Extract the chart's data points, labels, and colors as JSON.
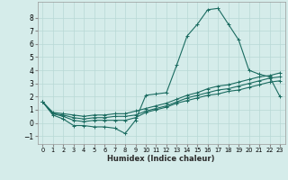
{
  "title": "",
  "xlabel": "Humidex (Indice chaleur)",
  "ylabel": "",
  "background_color": "#d5ecea",
  "line_color": "#1a6b60",
  "grid_color": "#b8d8d5",
  "x_ticks": [
    0,
    1,
    2,
    3,
    4,
    5,
    6,
    7,
    8,
    9,
    10,
    11,
    12,
    13,
    14,
    15,
    16,
    17,
    18,
    19,
    20,
    21,
    22,
    23
  ],
  "y_ticks": [
    -1,
    0,
    1,
    2,
    3,
    4,
    5,
    6,
    7,
    8
  ],
  "xlim": [
    -0.5,
    23.5
  ],
  "ylim": [
    -1.6,
    9.2
  ],
  "series": [
    {
      "x": [
        0,
        1,
        2,
        3,
        4,
        5,
        6,
        7,
        8,
        9,
        10,
        11,
        12,
        13,
        14,
        15,
        16,
        17,
        18,
        19,
        20,
        21,
        22,
        23
      ],
      "y": [
        1.6,
        0.6,
        0.3,
        -0.2,
        -0.2,
        -0.3,
        -0.3,
        -0.4,
        -0.8,
        0.2,
        2.1,
        2.2,
        2.3,
        4.4,
        6.6,
        7.5,
        8.6,
        8.7,
        7.5,
        6.3,
        4.0,
        3.7,
        3.5,
        2.0
      ]
    },
    {
      "x": [
        0,
        1,
        2,
        3,
        4,
        5,
        6,
        7,
        8,
        9,
        10,
        11,
        12,
        13,
        14,
        15,
        16,
        17,
        18,
        19,
        20,
        21,
        22,
        23
      ],
      "y": [
        1.6,
        0.7,
        0.5,
        0.2,
        0.1,
        0.2,
        0.2,
        0.2,
        0.2,
        0.4,
        0.8,
        1.0,
        1.2,
        1.5,
        1.7,
        1.9,
        2.1,
        2.2,
        2.4,
        2.5,
        2.7,
        2.9,
        3.1,
        3.2
      ]
    },
    {
      "x": [
        0,
        1,
        2,
        3,
        4,
        5,
        6,
        7,
        8,
        9,
        10,
        11,
        12,
        13,
        14,
        15,
        16,
        17,
        18,
        19,
        20,
        21,
        22,
        23
      ],
      "y": [
        1.6,
        0.7,
        0.6,
        0.4,
        0.3,
        0.4,
        0.4,
        0.5,
        0.5,
        0.6,
        0.9,
        1.1,
        1.3,
        1.6,
        1.9,
        2.1,
        2.3,
        2.5,
        2.6,
        2.8,
        3.0,
        3.2,
        3.4,
        3.5
      ]
    },
    {
      "x": [
        0,
        1,
        2,
        3,
        4,
        5,
        6,
        7,
        8,
        9,
        10,
        11,
        12,
        13,
        14,
        15,
        16,
        17,
        18,
        19,
        20,
        21,
        22,
        23
      ],
      "y": [
        1.6,
        0.8,
        0.7,
        0.6,
        0.5,
        0.6,
        0.6,
        0.7,
        0.7,
        0.9,
        1.1,
        1.3,
        1.5,
        1.8,
        2.1,
        2.3,
        2.6,
        2.8,
        2.9,
        3.1,
        3.3,
        3.5,
        3.6,
        3.8
      ]
    }
  ]
}
